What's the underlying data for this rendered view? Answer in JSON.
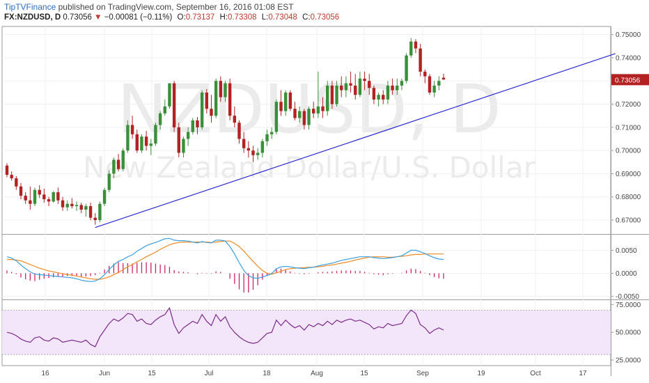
{
  "header": {
    "publisher": "TipTVFinance",
    "published_text": "published on TradingView.com, September 16, 2016 01:08 EST",
    "symbol": "FX:NZDUSD, D",
    "last": "0.73056",
    "change_arrow": "▼",
    "change": "−0.00081 (−0.11%)",
    "o_label": "O:",
    "o_value": "0.73137",
    "h_label": "H:",
    "h_value": "0.73308",
    "l_label": "L:",
    "l_value": "0.73048",
    "c_label": "C:",
    "c_value": "0.73056"
  },
  "watermark": {
    "symbol": "NZDUSD, D",
    "description": "New Zealand Dollar/U.S. Dollar"
  },
  "colors": {
    "up": "#3a8f3a",
    "down": "#b22222",
    "trendline": "#2b2bd0",
    "macd": "#3aa0e0",
    "signal": "#f08a24",
    "histogram": "#cc2266",
    "rsi": "#7a2a8c",
    "rsi_band": "#f3e6fb",
    "last_price_tag": "#b22222"
  },
  "chart_data": [
    {
      "type": "candlestick",
      "title": "",
      "ylim": [
        0.664,
        0.7535
      ],
      "y_ticks": [
        "0.75000",
        "0.74000",
        "0.73000",
        "0.72000",
        "0.71000",
        "0.70000",
        "0.69000",
        "0.68000",
        "0.67000"
      ],
      "last_price_label": "0.73056",
      "x_ticks": [
        "16",
        "Jun",
        "15",
        "Jul",
        "18",
        "Aug",
        "15",
        "Sep",
        "19",
        "Oct",
        "17"
      ],
      "candles": [
        [
          0.6935,
          0.6945,
          0.6885,
          0.6895
        ],
        [
          0.6895,
          0.691,
          0.687,
          0.688
        ],
        [
          0.688,
          0.689,
          0.683,
          0.6845
        ],
        [
          0.6845,
          0.686,
          0.679,
          0.6805
        ],
        [
          0.6805,
          0.682,
          0.677,
          0.6785
        ],
        [
          0.6785,
          0.6845,
          0.6745,
          0.677
        ],
        [
          0.677,
          0.684,
          0.676,
          0.683
        ],
        [
          0.683,
          0.685,
          0.6795,
          0.681
        ],
        [
          0.681,
          0.6835,
          0.6775,
          0.679
        ],
        [
          0.679,
          0.68,
          0.676,
          0.678
        ],
        [
          0.678,
          0.6825,
          0.6775,
          0.682
        ],
        [
          0.682,
          0.684,
          0.677,
          0.6785
        ],
        [
          0.6785,
          0.68,
          0.674,
          0.6755
        ],
        [
          0.6755,
          0.6785,
          0.674,
          0.677
        ],
        [
          0.677,
          0.6795,
          0.675,
          0.676
        ],
        [
          0.676,
          0.678,
          0.674,
          0.6765
        ],
        [
          0.6765,
          0.6775,
          0.673,
          0.6745
        ],
        [
          0.6745,
          0.677,
          0.6715,
          0.676
        ],
        [
          0.676,
          0.6775,
          0.67,
          0.671
        ],
        [
          0.671,
          0.673,
          0.668,
          0.67
        ],
        [
          0.67,
          0.678,
          0.669,
          0.677
        ],
        [
          0.677,
          0.684,
          0.676,
          0.683
        ],
        [
          0.683,
          0.6915,
          0.682,
          0.69
        ],
        [
          0.69,
          0.697,
          0.688,
          0.696
        ],
        [
          0.696,
          0.6985,
          0.691,
          0.692
        ],
        [
          0.692,
          0.701,
          0.691,
          0.7
        ],
        [
          0.7,
          0.713,
          0.699,
          0.711
        ],
        [
          0.711,
          0.715,
          0.705,
          0.707
        ],
        [
          0.707,
          0.709,
          0.699,
          0.7
        ],
        [
          0.7,
          0.707,
          0.699,
          0.706
        ],
        [
          0.706,
          0.7085,
          0.7,
          0.702
        ],
        [
          0.702,
          0.705,
          0.698,
          0.703
        ],
        [
          0.703,
          0.712,
          0.702,
          0.711
        ],
        [
          0.711,
          0.717,
          0.709,
          0.716
        ],
        [
          0.716,
          0.722,
          0.715,
          0.719
        ],
        [
          0.719,
          0.729,
          0.718,
          0.729
        ],
        [
          0.729,
          0.73,
          0.708,
          0.71
        ],
        [
          0.71,
          0.712,
          0.697,
          0.699
        ],
        [
          0.699,
          0.706,
          0.697,
          0.705
        ],
        [
          0.705,
          0.71,
          0.702,
          0.708
        ],
        [
          0.708,
          0.714,
          0.707,
          0.713
        ],
        [
          0.713,
          0.7145,
          0.707,
          0.71
        ],
        [
          0.71,
          0.726,
          0.709,
          0.725
        ],
        [
          0.725,
          0.7265,
          0.716,
          0.718
        ],
        [
          0.718,
          0.724,
          0.712,
          0.715
        ],
        [
          0.715,
          0.731,
          0.714,
          0.73
        ],
        [
          0.73,
          0.732,
          0.721,
          0.723
        ],
        [
          0.723,
          0.73,
          0.721,
          0.729
        ],
        [
          0.729,
          0.731,
          0.713,
          0.715
        ],
        [
          0.715,
          0.719,
          0.71,
          0.712
        ],
        [
          0.712,
          0.713,
          0.703,
          0.705
        ],
        [
          0.705,
          0.708,
          0.699,
          0.701
        ],
        [
          0.701,
          0.704,
          0.697,
          0.7
        ],
        [
          0.7,
          0.702,
          0.695,
          0.698
        ],
        [
          0.698,
          0.701,
          0.696,
          0.699
        ],
        [
          0.699,
          0.705,
          0.697,
          0.704
        ],
        [
          0.704,
          0.709,
          0.702,
          0.707
        ],
        [
          0.707,
          0.71,
          0.705,
          0.708
        ],
        [
          0.708,
          0.722,
          0.707,
          0.721
        ],
        [
          0.721,
          0.726,
          0.715,
          0.717
        ],
        [
          0.717,
          0.726,
          0.715,
          0.725
        ],
        [
          0.725,
          0.726,
          0.717,
          0.718
        ],
        [
          0.718,
          0.721,
          0.713,
          0.714
        ],
        [
          0.714,
          0.719,
          0.712,
          0.717
        ],
        [
          0.717,
          0.718,
          0.709,
          0.711
        ],
        [
          0.711,
          0.719,
          0.709,
          0.718
        ],
        [
          0.718,
          0.721,
          0.714,
          0.716
        ],
        [
          0.716,
          0.734,
          0.714,
          0.719
        ],
        [
          0.719,
          0.723,
          0.714,
          0.717
        ],
        [
          0.717,
          0.73,
          0.715,
          0.728
        ],
        [
          0.728,
          0.73,
          0.718,
          0.72
        ],
        [
          0.72,
          0.73,
          0.719,
          0.728
        ],
        [
          0.728,
          0.732,
          0.723,
          0.726
        ],
        [
          0.726,
          0.732,
          0.723,
          0.729
        ],
        [
          0.729,
          0.734,
          0.725,
          0.728
        ],
        [
          0.728,
          0.733,
          0.722,
          0.724
        ],
        [
          0.724,
          0.734,
          0.723,
          0.731
        ],
        [
          0.731,
          0.734,
          0.726,
          0.73
        ],
        [
          0.73,
          0.733,
          0.724,
          0.727
        ],
        [
          0.727,
          0.728,
          0.72,
          0.722
        ],
        [
          0.722,
          0.725,
          0.719,
          0.724
        ],
        [
          0.724,
          0.726,
          0.72,
          0.722
        ],
        [
          0.722,
          0.73,
          0.72,
          0.728
        ],
        [
          0.728,
          0.731,
          0.724,
          0.726
        ],
        [
          0.726,
          0.731,
          0.724,
          0.728
        ],
        [
          0.728,
          0.731,
          0.726,
          0.73
        ],
        [
          0.73,
          0.742,
          0.729,
          0.741
        ],
        [
          0.741,
          0.7485,
          0.74,
          0.747
        ],
        [
          0.747,
          0.748,
          0.742,
          0.744
        ],
        [
          0.744,
          0.746,
          0.732,
          0.734
        ],
        [
          0.734,
          0.735,
          0.729,
          0.732
        ],
        [
          0.732,
          0.733,
          0.724,
          0.725
        ],
        [
          0.725,
          0.73,
          0.723,
          0.728
        ],
        [
          0.728,
          0.732,
          0.726,
          0.73
        ],
        [
          0.7314,
          0.7331,
          0.7305,
          0.7306
        ]
      ],
      "trendline": {
        "start": {
          "index": 19,
          "price": 0.6668
        },
        "end": {
          "index": 131,
          "price": 0.7418
        }
      }
    },
    {
      "type": "line",
      "title": "",
      "ylim": [
        -0.0057,
        0.0084
      ],
      "y_ticks": [
        "0.0050",
        "0.0000",
        "-0.0050"
      ],
      "series": [
        {
          "key": "macd",
          "values": [
            0.0036,
            0.0033,
            0.0027,
            0.0018,
            0.001,
            0.0003,
            -0.0002,
            -0.0003,
            -0.0004,
            -0.0005,
            -0.0006,
            -0.0007,
            -0.0008,
            -0.0009,
            -0.001,
            -0.0012,
            -0.0015,
            -0.0017,
            -0.0018,
            -0.0017,
            -0.0012,
            -0.0003,
            0.0008,
            0.0018,
            0.0026,
            0.003,
            0.0036,
            0.004,
            0.0048,
            0.0054,
            0.006,
            0.0064,
            0.0067,
            0.0071,
            0.0075,
            0.0076,
            0.0072,
            0.0071,
            0.0071,
            0.007,
            0.0068,
            0.0066,
            0.0069,
            0.0067,
            0.0066,
            0.0072,
            0.0072,
            0.007,
            0.0058,
            0.0042,
            0.0023,
            0.0006,
            -0.0005,
            -0.001,
            -0.0011,
            -0.0008,
            -0.0005,
            -0.0001,
            0.001,
            0.0014,
            0.0015,
            0.0014,
            0.0012,
            0.0011,
            0.001,
            0.0012,
            0.0013,
            0.0016,
            0.0018,
            0.002,
            0.0022,
            0.0025,
            0.0028,
            0.003,
            0.0032,
            0.0034,
            0.0036,
            0.0036,
            0.0036,
            0.0034,
            0.0033,
            0.0032,
            0.0033,
            0.0034,
            0.0036,
            0.0038,
            0.0044,
            0.005,
            0.005,
            0.0047,
            0.0043,
            0.0038,
            0.0034,
            0.0031,
            0.003
          ]
        },
        {
          "key": "signal",
          "values": [
            0.003,
            0.003,
            0.0029,
            0.0027,
            0.0023,
            0.0019,
            0.0015,
            0.0011,
            0.0008,
            0.0005,
            0.0003,
            0.0001,
            -0.0001,
            -0.0003,
            -0.0004,
            -0.0006,
            -0.0008,
            -0.001,
            -0.0012,
            -0.0013,
            -0.0013,
            -0.0011,
            -0.0008,
            -0.0003,
            0.0002,
            0.0008,
            0.0014,
            0.0019,
            0.0025,
            0.003,
            0.0036,
            0.0041,
            0.0046,
            0.0052,
            0.0057,
            0.0062,
            0.0065,
            0.0067,
            0.0068,
            0.0068,
            0.0068,
            0.0068,
            0.0068,
            0.0068,
            0.0067,
            0.0068,
            0.0069,
            0.007,
            0.007,
            0.0065,
            0.0058,
            0.0048,
            0.0037,
            0.0026,
            0.0015,
            0.0006,
            0.0,
            -0.0002,
            0.0001,
            0.0004,
            0.0008,
            0.001,
            0.0011,
            0.0012,
            0.0012,
            0.0013,
            0.0013,
            0.0014,
            0.0015,
            0.0017,
            0.0018,
            0.002,
            0.0022,
            0.0024,
            0.0026,
            0.0029,
            0.0031,
            0.0033,
            0.0035,
            0.0036,
            0.0036,
            0.0036,
            0.0035,
            0.0035,
            0.0036,
            0.0037,
            0.0038,
            0.004,
            0.0041,
            0.0041,
            0.0042,
            0.0042,
            0.0042,
            0.0042,
            0.0042
          ]
        },
        {
          "key": "histogram",
          "values": [
            0.0006,
            0.0003,
            -0.0002,
            -0.0009,
            -0.0013,
            -0.0016,
            -0.0017,
            -0.0014,
            -0.0012,
            -0.001,
            -0.0009,
            -0.0008,
            -0.0007,
            -0.0006,
            -0.0006,
            -0.0006,
            -0.0007,
            -0.0007,
            -0.0006,
            -0.0004,
            0.0001,
            0.0008,
            0.0016,
            0.0021,
            0.0024,
            0.0022,
            0.0022,
            0.0021,
            0.0023,
            0.0024,
            0.0024,
            0.0023,
            0.0021,
            0.0019,
            0.0018,
            0.0014,
            0.0007,
            0.0004,
            0.0003,
            0.0002,
            0.0,
            -0.0002,
            0.0001,
            -0.0001,
            -0.0001,
            0.0004,
            0.0003,
            0.0,
            -0.0012,
            -0.0023,
            -0.0035,
            -0.0042,
            -0.0042,
            -0.0036,
            -0.0026,
            -0.0014,
            -0.0005,
            0.0001,
            0.0009,
            0.001,
            0.0007,
            0.0004,
            0.0001,
            -0.0001,
            -0.0002,
            -0.0001,
            0.0,
            0.0002,
            0.0003,
            0.0003,
            0.0004,
            0.0005,
            0.0006,
            0.0006,
            0.0006,
            0.0005,
            0.0005,
            0.0003,
            0.0001,
            -0.0002,
            -0.0003,
            -0.0004,
            -0.0002,
            -0.0001,
            0.0,
            0.0001,
            0.0006,
            0.001,
            0.0009,
            0.0005,
            0.0001,
            -0.0004,
            -0.0008,
            -0.0011,
            -0.0012
          ]
        }
      ]
    },
    {
      "type": "line",
      "title": "",
      "ylim": [
        20,
        79
      ],
      "y_ticks": [
        "75.0000",
        "50.0000",
        "25.0000"
      ],
      "band": [
        30,
        70
      ],
      "series": [
        {
          "key": "rsi",
          "values": [
            50,
            49,
            47,
            44,
            42,
            41,
            45,
            46,
            43,
            42,
            45,
            44,
            41,
            42,
            43,
            42,
            41,
            43,
            39,
            37,
            46,
            52,
            58,
            62,
            60,
            63,
            67,
            66,
            60,
            62,
            58,
            57,
            61,
            64,
            66,
            72,
            57,
            49,
            54,
            57,
            60,
            58,
            66,
            60,
            56,
            66,
            60,
            64,
            55,
            50,
            46,
            43,
            41,
            40,
            41,
            45,
            49,
            50,
            61,
            56,
            61,
            57,
            54,
            56,
            52,
            57,
            55,
            58,
            56,
            60,
            57,
            61,
            59,
            61,
            62,
            60,
            61,
            59,
            57,
            53,
            55,
            54,
            58,
            56,
            57,
            58,
            65,
            70,
            67,
            57,
            54,
            49,
            52,
            54,
            52
          ]
        }
      ]
    }
  ]
}
